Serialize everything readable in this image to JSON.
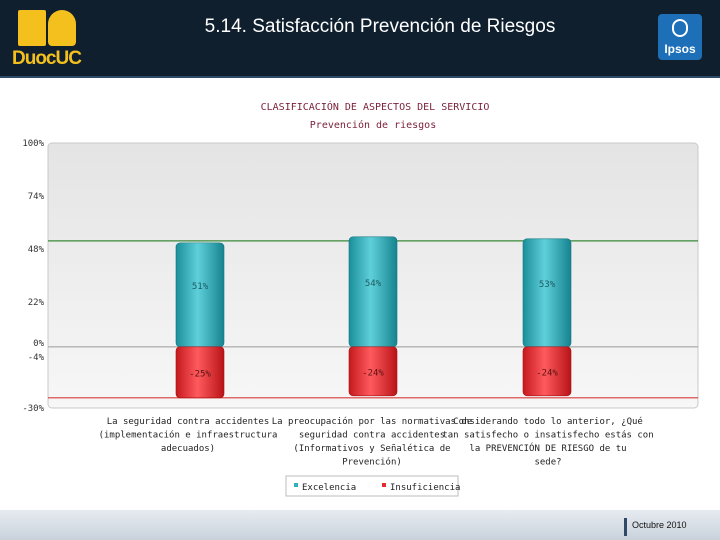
{
  "header": {
    "title": "5.14. Satisfacción Prevención de Riesgos",
    "logo_left": "DuocUC",
    "logo_right": "Ipsos"
  },
  "footer": {
    "date": "Octubre 2010"
  },
  "colors": {
    "header_bg": "#0f1f2e",
    "excelencia": "#2bb0bc",
    "insuficiencia": "#e8282c",
    "ref_green": "#3a8a3a",
    "ref_red": "#d83a3a"
  },
  "chart_data": {
    "type": "bar",
    "title": "CLASIFICACIÓN DE ASPECTOS DEL SERVICIO",
    "subtitle": "Prevención de riesgos",
    "y_ticks": [
      "100%",
      "74%",
      "48%",
      "22%",
      "0%",
      "-4%",
      "-30%"
    ],
    "y_tick_values": [
      100,
      74,
      48,
      22,
      0,
      -4,
      -30
    ],
    "ylim": [
      -30,
      100
    ],
    "categories": [
      [
        "La seguridad contra accidentes",
        "(implementación e infraestructura",
        "adecuados)"
      ],
      [
        "La preocupación por las normativas de",
        "seguridad contra accidentes",
        "(Informativos y Señalética de",
        "Prevención)"
      ],
      [
        "Considerando todo lo anterior, ¿Qué",
        "tan satisfecho o insatisfecho estás con",
        "la PREVENCIÓN DE RIESGO de tu",
        "sede?"
      ]
    ],
    "series": [
      {
        "name": "Excelencia",
        "values": [
          51,
          54,
          53
        ],
        "labels": [
          "51%",
          "54%",
          "53%"
        ]
      },
      {
        "name": "Insuficiencia",
        "values": [
          -25,
          -24,
          -24
        ],
        "labels": [
          "-25%",
          "-24%",
          "-24%"
        ]
      }
    ],
    "reference_lines": [
      {
        "value": 52,
        "color": "#3a8a3a"
      },
      {
        "value": -25,
        "color": "#d83a3a"
      }
    ],
    "legend_position": "bottom-center",
    "grid": false
  }
}
